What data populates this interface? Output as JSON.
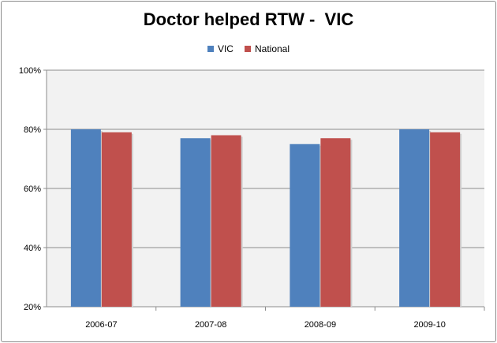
{
  "chart_data": {
    "type": "bar",
    "title": "Doctor helped RTW -  VIC",
    "xlabel": "",
    "ylabel": "",
    "categories": [
      "2006-07",
      "2007-08",
      "2008-09",
      "2009-10"
    ],
    "series": [
      {
        "name": "VIC",
        "color": "#4f81bd",
        "values": [
          80,
          77,
          75,
          80
        ]
      },
      {
        "name": "National",
        "color": "#c0504d",
        "values": [
          79,
          78,
          77,
          79
        ]
      }
    ],
    "ylim": [
      20,
      100
    ],
    "yticks": [
      20,
      40,
      60,
      80,
      100
    ],
    "ytick_labels": [
      "20%",
      "40%",
      "60%",
      "80%",
      "100%"
    ],
    "grid": true,
    "legend_position": "top",
    "plot_background": "#f2f2f2"
  }
}
